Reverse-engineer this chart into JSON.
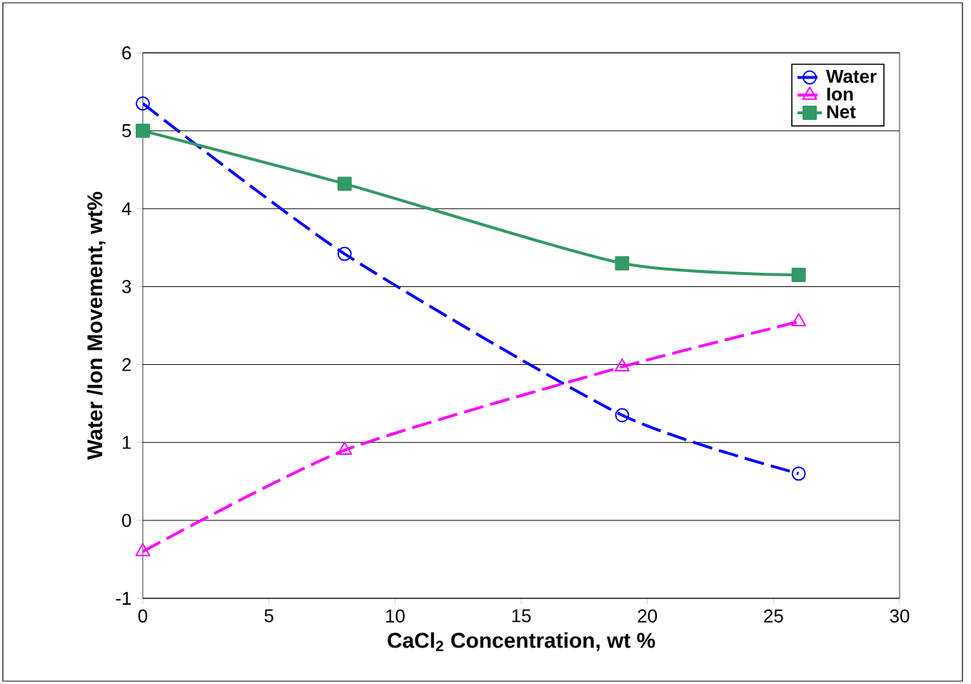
{
  "chart_data": {
    "type": "line",
    "xlabel": "CaCl$_{2}$ Concentration, wt %",
    "ylabel": "Water /Ion Movement, wt%",
    "x": [
      0,
      8,
      19,
      26
    ],
    "series": [
      {
        "name": "Water",
        "color": "#0000ff",
        "values": [
          5.35,
          3.42,
          1.35,
          0.6
        ],
        "marker": "circle",
        "line_style": "dashed"
      },
      {
        "name": "Ion",
        "color": "#ff00ff",
        "values": [
          -0.4,
          0.9,
          1.97,
          2.55
        ],
        "marker": "triangle",
        "line_style": "dashed"
      },
      {
        "name": "Net",
        "color": "#339966",
        "values": [
          5.0,
          4.32,
          3.3,
          3.15
        ],
        "marker": "square",
        "line_style": "solid"
      }
    ],
    "xlim": [
      0,
      30
    ],
    "xticks": [
      0,
      5,
      10,
      15,
      20,
      25,
      30
    ],
    "ylim": [
      -1,
      6
    ],
    "yticks": [
      -1,
      0,
      1,
      2,
      3,
      4,
      5,
      6
    ],
    "grid": "y",
    "legend": "top right"
  }
}
